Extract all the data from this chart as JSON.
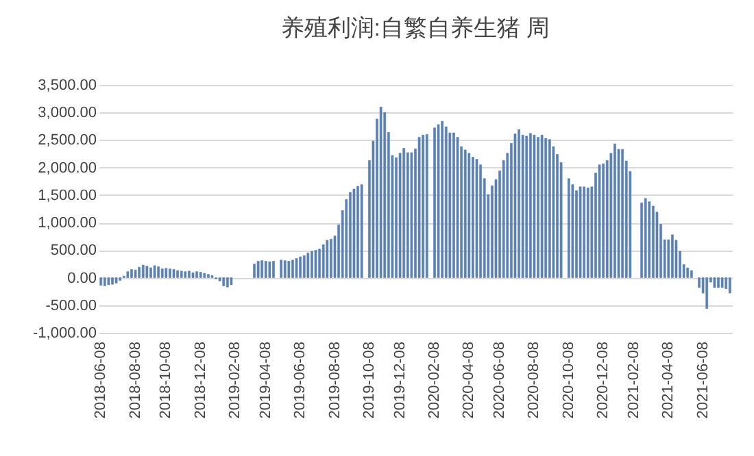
{
  "chart_data": {
    "type": "bar",
    "title": "养殖利润:自繁自养生猪 周",
    "categories": [
      "2018-06-08",
      null,
      null,
      null,
      null,
      null,
      null,
      null,
      null,
      "2018-08-08",
      null,
      null,
      null,
      null,
      null,
      null,
      null,
      "2018-10-08",
      null,
      null,
      null,
      null,
      null,
      null,
      null,
      null,
      "2018-12-08",
      null,
      null,
      null,
      null,
      null,
      null,
      null,
      null,
      "2019-02-08",
      null,
      null,
      null,
      null,
      null,
      null,
      null,
      "2019-04-08",
      null,
      null,
      null,
      null,
      null,
      null,
      null,
      null,
      "2019-06-08",
      null,
      null,
      null,
      null,
      null,
      null,
      null,
      null,
      "2019-08-08",
      null,
      null,
      null,
      null,
      null,
      null,
      null,
      null,
      "2019-10-08",
      null,
      null,
      null,
      null,
      null,
      null,
      null,
      "2019-12-08",
      null,
      null,
      null,
      null,
      null,
      null,
      null,
      null,
      "2020-02-08",
      null,
      null,
      null,
      null,
      null,
      null,
      null,
      null,
      "2020-04-08",
      null,
      null,
      null,
      null,
      null,
      null,
      null,
      "2020-06-08",
      null,
      null,
      null,
      null,
      null,
      null,
      null,
      null,
      "2020-08-08",
      null,
      null,
      null,
      null,
      null,
      null,
      null,
      null,
      "2020-10-08",
      null,
      null,
      null,
      null,
      null,
      null,
      null,
      null,
      "2020-12-08",
      null,
      null,
      null,
      null,
      null,
      null,
      null,
      "2021-02-08",
      null,
      null,
      null,
      null,
      null,
      null,
      null,
      null,
      "2021-04-08",
      null,
      null,
      null,
      null,
      null,
      null,
      null,
      null,
      "2021-06-08",
      null,
      null,
      null,
      null,
      null,
      null,
      null
    ],
    "values": [
      -140,
      -150,
      -130,
      -120,
      -100,
      -50,
      30,
      110,
      150,
      140,
      190,
      230,
      210,
      180,
      220,
      200,
      160,
      170,
      160,
      150,
      130,
      120,
      110,
      120,
      90,
      110,
      100,
      80,
      60,
      40,
      -20,
      -60,
      -150,
      -170,
      -130,
      null,
      null,
      null,
      null,
      null,
      250,
      300,
      310,
      300,
      290,
      300,
      null,
      320,
      310,
      300,
      320,
      350,
      380,
      400,
      450,
      480,
      500,
      520,
      600,
      680,
      700,
      760,
      960,
      1220,
      1420,
      1550,
      1610,
      1660,
      1690,
      null,
      2130,
      2480,
      2880,
      3100,
      3000,
      2640,
      2220,
      2180,
      2260,
      2350,
      2270,
      2270,
      2340,
      2550,
      2590,
      2600,
      null,
      2720,
      2780,
      2840,
      2740,
      2630,
      2630,
      2550,
      2380,
      2320,
      2260,
      2190,
      2150,
      2050,
      1800,
      1510,
      1670,
      1780,
      1940,
      2130,
      2260,
      2440,
      2610,
      2690,
      2590,
      2570,
      2620,
      2590,
      2550,
      2590,
      2530,
      2510,
      2380,
      2240,
      2090,
      null,
      1800,
      1690,
      1580,
      1650,
      1650,
      1630,
      1650,
      1900,
      2050,
      2070,
      2130,
      2260,
      2430,
      2330,
      2330,
      2120,
      1930,
      null,
      null,
      1360,
      1440,
      1380,
      1300,
      1190,
      970,
      690,
      690,
      780,
      680,
      480,
      240,
      180,
      130,
      null,
      -180,
      -280,
      -560,
      -80,
      -180,
      -180,
      -180,
      -200,
      -280
    ],
    "color": "#5b80b2",
    "ylim": [
      -1000,
      3500
    ],
    "yticks": [
      {
        "value": -1000,
        "label": "-1,000.00"
      },
      {
        "value": -500,
        "label": "-500.00"
      },
      {
        "value": 0,
        "label": "0.00"
      },
      {
        "value": 500,
        "label": "500.00"
      },
      {
        "value": 1000,
        "label": "1,000.00"
      },
      {
        "value": 1500,
        "label": "1,500.00"
      },
      {
        "value": 2000,
        "label": "2,000.00"
      },
      {
        "value": 2500,
        "label": "2,500.00"
      },
      {
        "value": 3000,
        "label": "3,000.00"
      },
      {
        "value": 3500,
        "label": "3,500.00"
      }
    ],
    "grid": "y"
  }
}
